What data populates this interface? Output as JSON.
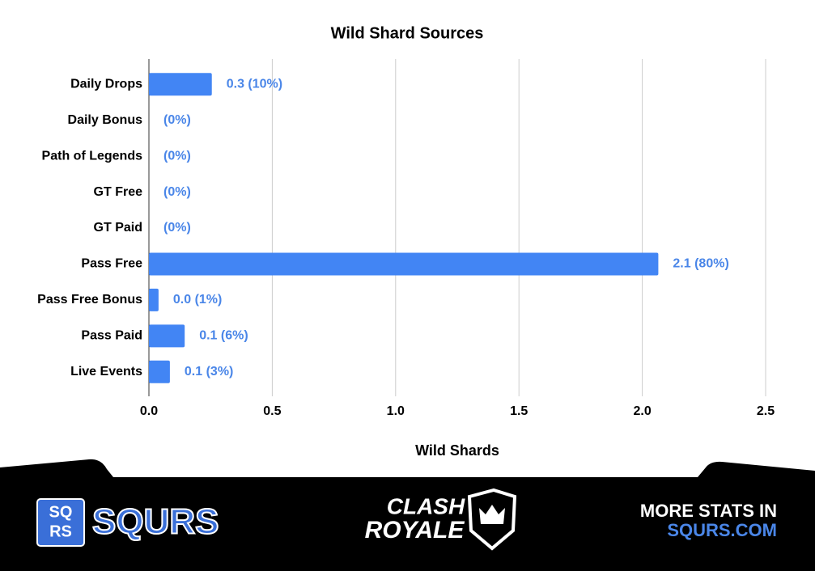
{
  "chart_data": {
    "type": "bar",
    "orientation": "horizontal",
    "title": "Wild Shard Sources",
    "categories": [
      "Daily Drops",
      "Daily Bonus",
      "Path of Legends",
      "GT Free",
      "GT Paid",
      "Pass Free",
      "Pass Free Bonus",
      "Pass Paid",
      "Live Events"
    ],
    "values": [
      0.255,
      0,
      0,
      0,
      0,
      2.065,
      0.039,
      0.145,
      0.085
    ],
    "value_labels": [
      "0.3 (10%)",
      "(0%)",
      "(0%)",
      "(0%)",
      "(0%)",
      "2.1 (80%)",
      "0.0 (1%)",
      "0.1 (6%)",
      "0.1 (3%)"
    ],
    "color": "#4285f4",
    "label_color": "#4a86e8",
    "xlabel": "Wild Shards",
    "xlim": [
      0,
      2.5
    ],
    "xticks": [
      {
        "value": 0,
        "label": "0.0"
      },
      0.5,
      {
        "value": 1,
        "label": "1.0"
      },
      1.5,
      {
        "value": 2,
        "label": "2.0"
      },
      2.5
    ],
    "grid": true
  },
  "footer": {
    "brand_icon_top": "SQ",
    "brand_icon_bottom": "RS",
    "brand": "SQURS",
    "game_top": "CLASH",
    "game_bottom": "ROYALE",
    "promo_top": "MORE STATS IN",
    "promo_bottom": "SQURS.COM"
  }
}
